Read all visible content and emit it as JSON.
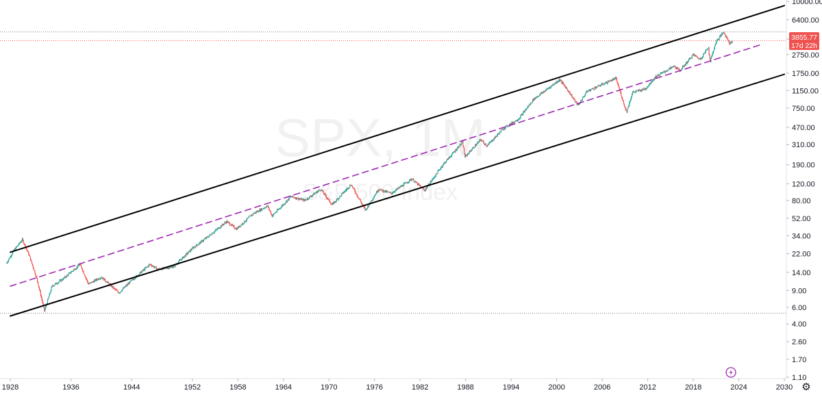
{
  "chart_data": {
    "type": "line",
    "title": "SPX, 1M",
    "subtitle": "S&P 500 Index",
    "scale": "log",
    "y_ticks": [
      "10000.00",
      "6400.00",
      "4000.00",
      "2750.00",
      "1750.00",
      "1150.00",
      "750.00",
      "470.00",
      "310.00",
      "190.00",
      "120.00",
      "80.00",
      "52.00",
      "34.00",
      "22.00",
      "14.00",
      "9.00",
      "6.00",
      "4.00",
      "2.60",
      "1.70",
      "1.10"
    ],
    "y_tick_values": [
      10000,
      6400,
      4000,
      2750,
      1750,
      1150,
      750,
      470,
      310,
      190,
      120,
      80,
      52,
      34,
      22,
      14,
      9,
      6,
      4,
      2.6,
      1.7,
      1.1
    ],
    "x_ticks": [
      "1928",
      "1936",
      "1944",
      "1952",
      "1958",
      "1964",
      "1970",
      "1976",
      "1982",
      "1988",
      "1994",
      "2000",
      "2006",
      "2012",
      "2018",
      "2024",
      "2030"
    ],
    "x_tick_values": [
      1928,
      1936,
      1944,
      1952,
      1958,
      1964,
      1970,
      1976,
      1982,
      1988,
      1994,
      2000,
      2006,
      2012,
      2018,
      2024,
      2030
    ],
    "last_price": "3855.77",
    "countdown": "17d 22h",
    "series": [
      {
        "style": "candles",
        "up_color": "#26a69a",
        "down_color": "#ef5350",
        "x": [
          1927.5,
          1928.5,
          1929.6,
          1930.5,
          1931.5,
          1932.5,
          1933.5,
          1935.0,
          1937.2,
          1938.3,
          1940.0,
          1942.3,
          1944.0,
          1946.4,
          1947.5,
          1949.5,
          1952.0,
          1954.0,
          1956.5,
          1957.8,
          1960.0,
          1961.9,
          1962.5,
          1965.0,
          1966.8,
          1968.9,
          1970.4,
          1972.9,
          1974.8,
          1976.5,
          1978.2,
          1980.9,
          1982.6,
          1985.0,
          1987.6,
          1987.9,
          1990.0,
          1990.8,
          1993.0,
          1995.0,
          1997.0,
          1998.5,
          2000.4,
          2001.5,
          2002.8,
          2004.0,
          2007.8,
          2009.2,
          2010.0,
          2011.7,
          2013.0,
          2015.5,
          2016.2,
          2018.0,
          2018.9,
          2020.0,
          2020.2,
          2021.0,
          2022.0,
          2022.8,
          2023.2
        ],
        "y": [
          17.5,
          24.0,
          31.0,
          21.0,
          12.0,
          5.5,
          10.0,
          12.0,
          17.0,
          10.5,
          12.5,
          8.5,
          11.5,
          17.0,
          15.0,
          16.0,
          25.0,
          33.0,
          48.0,
          40.0,
          58.0,
          70.0,
          55.0,
          88.0,
          80.0,
          105.0,
          72.0,
          118.0,
          63.0,
          105.0,
          95.0,
          135.0,
          102.0,
          190.0,
          330.0,
          230.0,
          350.0,
          300.0,
          460.0,
          580.0,
          940.0,
          1150.0,
          1500.0,
          1150.0,
          800.0,
          1130.0,
          1550.0,
          680.0,
          1100.0,
          1200.0,
          1600.0,
          2080.0,
          1850.0,
          2750.0,
          2450.0,
          3300.0,
          2300.0,
          3750.0,
          4770.0,
          3600.0,
          3855.77
        ]
      }
    ],
    "channel": {
      "upper": {
        "x": [
          1928.0,
          2030.0
        ],
        "y": [
          22.8,
          9020.0
        ]
      },
      "lower": {
        "x": [
          1928.0,
          2030.0
        ],
        "y": [
          4.85,
          1705.0
        ]
      },
      "mid": {
        "x": [
          1928.0,
          2027.0
        ],
        "y": [
          10.0,
          3520.0
        ]
      }
    },
    "horizontal_levels": [
      4770.0,
      3855.77,
      5.2
    ],
    "colors": {
      "accent": "#ef5350",
      "up": "#26a69a",
      "down": "#ef5350",
      "channel": "#000000",
      "midline": "#9c27b0",
      "grid": "#e0e3eb",
      "axis_text": "#131722"
    },
    "grid": false,
    "legend": "none"
  },
  "icons": {
    "replay": "lightning-icon",
    "settings": "gear-icon"
  }
}
